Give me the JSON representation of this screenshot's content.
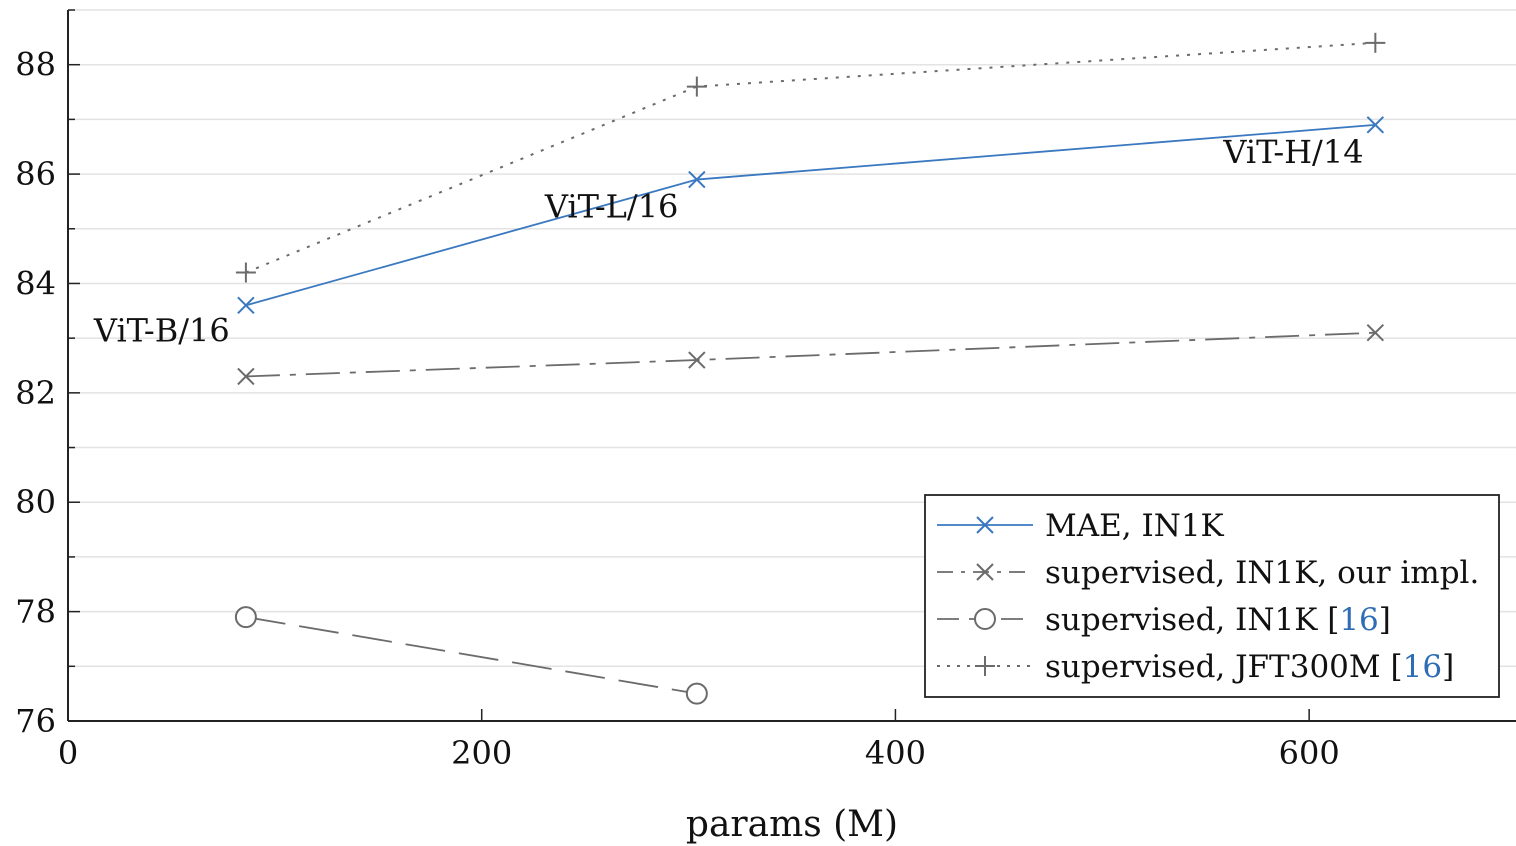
{
  "chart_data": {
    "type": "line",
    "xlabel": "params (M)",
    "ylabel": "",
    "xlim": [
      0,
      700
    ],
    "ylim": [
      76,
      89
    ],
    "x_ticks": [
      0,
      200,
      400,
      600
    ],
    "y_ticks": [
      76,
      78,
      80,
      82,
      84,
      86,
      88
    ],
    "grid": "horizontal, minor every 1",
    "legend_position": "bottom-right",
    "annotations": [
      {
        "text": "ViT-B/16",
        "x": 86,
        "y": 83.6
      },
      {
        "text": "ViT-L/16",
        "x": 304,
        "y": 85.9
      },
      {
        "text": "ViT-H/14",
        "x": 632,
        "y": 86.9
      }
    ],
    "series": [
      {
        "name": "MAE, IN1K",
        "ref": "",
        "color": "#3a78c0",
        "dash": "solid",
        "marker": "x",
        "points": [
          [
            86,
            83.6
          ],
          [
            304,
            85.9
          ],
          [
            632,
            86.9
          ]
        ]
      },
      {
        "name": "supervised, IN1K, our impl.",
        "ref": "",
        "color": "#6b6b6b",
        "dash": "dashdot",
        "marker": "x",
        "points": [
          [
            86,
            82.3
          ],
          [
            304,
            82.6
          ],
          [
            632,
            83.1
          ]
        ]
      },
      {
        "name": "supervised, IN1K",
        "ref": "[16]",
        "color": "#6b6b6b",
        "dash": "dashed",
        "marker": "o",
        "points": [
          [
            86,
            77.9
          ],
          [
            304,
            76.5
          ]
        ]
      },
      {
        "name": "supervised, JFT300M",
        "ref": "[16]",
        "color": "#6b6b6b",
        "dash": "dotted",
        "marker": "+",
        "points": [
          [
            86,
            84.2
          ],
          [
            304,
            87.6
          ],
          [
            632,
            88.4
          ]
        ]
      }
    ]
  }
}
